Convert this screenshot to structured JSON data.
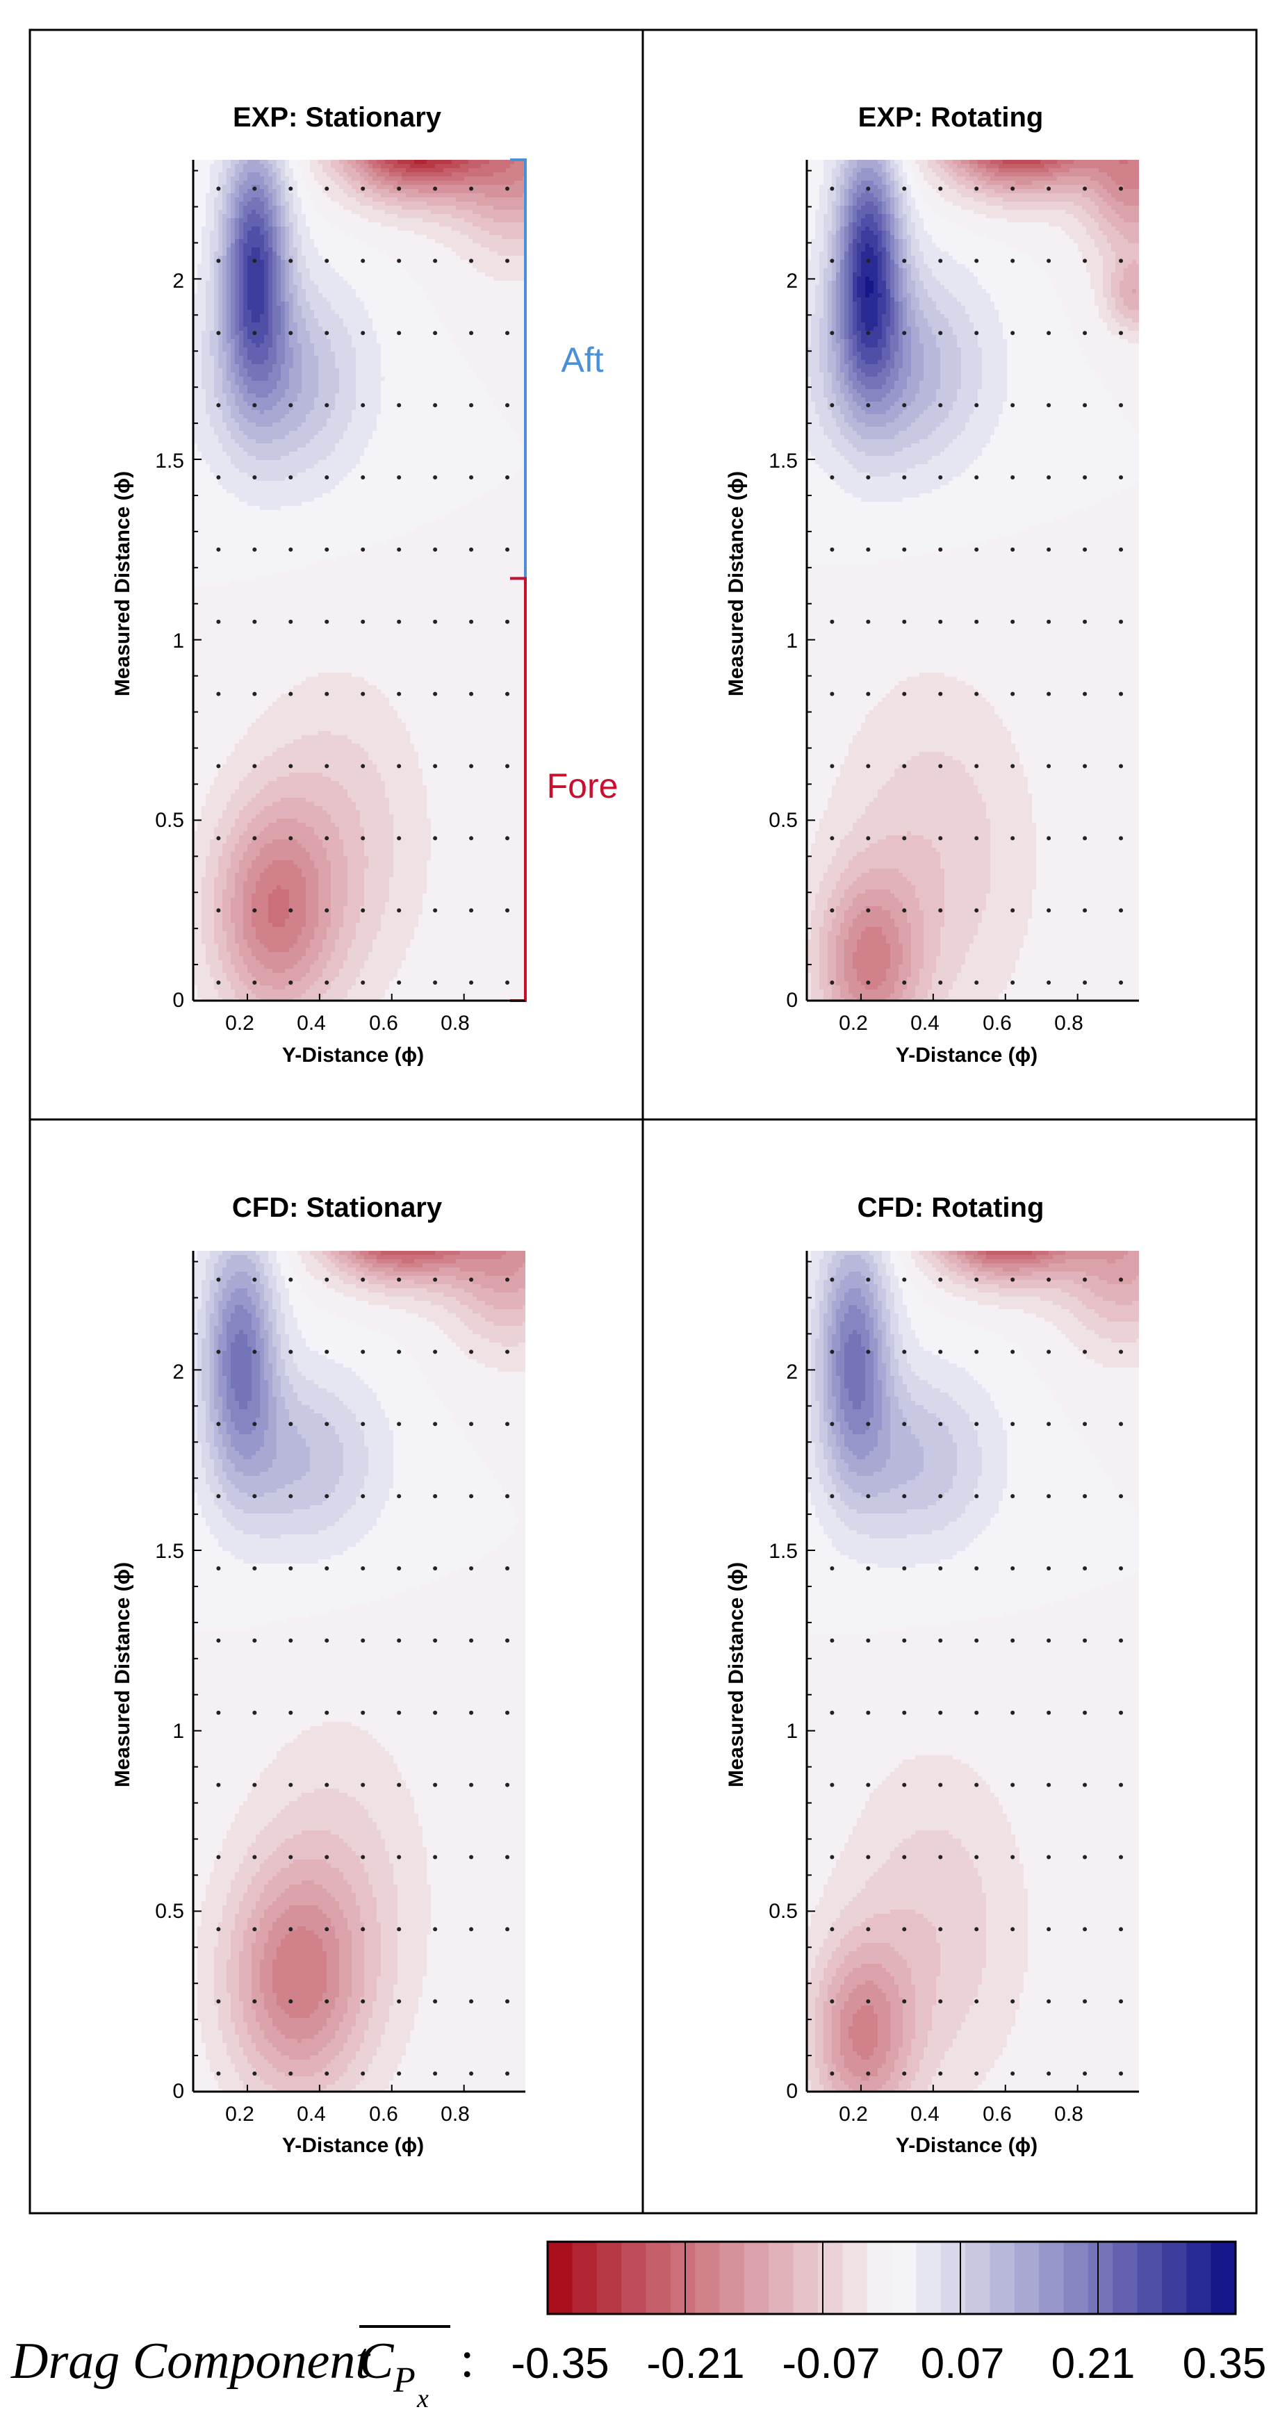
{
  "chart_data": [
    {
      "type": "contour",
      "title": "EXP: Stationary",
      "xlabel": "Y-Distance (ϕ)",
      "ylabel": "Measured Distance (ϕ)",
      "xlim": [
        0.05,
        0.97
      ],
      "ylim": [
        0,
        2.33
      ],
      "xticks": [
        "0.2",
        "0.4",
        "0.6",
        "0.8"
      ],
      "yticks": [
        "0",
        "0.5",
        "1",
        "1.5",
        "2"
      ],
      "annotations": [
        {
          "text": "Aft",
          "color": "#4a90d9",
          "range": [
            1.17,
            2.33
          ]
        },
        {
          "text": "Fore",
          "color": "#c8102e",
          "range": [
            0,
            1.17
          ]
        }
      ],
      "features": [
        {
          "x": 0.22,
          "y": 2.05,
          "value": 0.26,
          "sx": 0.09,
          "sy": 0.33
        },
        {
          "x": 0.3,
          "y": 1.72,
          "value": 0.12,
          "sx": 0.22,
          "sy": 0.28
        },
        {
          "x": 0.66,
          "y": 2.4,
          "value": -0.36,
          "sx": 0.2,
          "sy": 0.16
        },
        {
          "x": 0.95,
          "y": 2.33,
          "value": -0.16,
          "sx": 0.18,
          "sy": 0.25
        },
        {
          "x": 0.27,
          "y": 0.24,
          "value": -0.17,
          "sx": 0.17,
          "sy": 0.3
        },
        {
          "x": 0.45,
          "y": 0.45,
          "value": -0.07,
          "sx": 0.25,
          "sy": 0.45
        }
      ]
    },
    {
      "type": "contour",
      "title": "EXP: Rotating",
      "xlabel": "Y-Distance (ϕ)",
      "ylabel": "Measured Distance (ϕ)",
      "xlim": [
        0.05,
        0.97
      ],
      "ylim": [
        0,
        2.33
      ],
      "xticks": [
        "0.2",
        "0.4",
        "0.6",
        "0.8"
      ],
      "yticks": [
        "0",
        "0.5",
        "1",
        "1.5",
        "2"
      ],
      "features": [
        {
          "x": 0.22,
          "y": 2.05,
          "value": 0.28,
          "sx": 0.09,
          "sy": 0.33
        },
        {
          "x": 0.3,
          "y": 1.75,
          "value": 0.13,
          "sx": 0.24,
          "sy": 0.28
        },
        {
          "x": 0.64,
          "y": 2.42,
          "value": -0.38,
          "sx": 0.21,
          "sy": 0.16
        },
        {
          "x": 0.96,
          "y": 2.3,
          "value": -0.17,
          "sx": 0.14,
          "sy": 0.25
        },
        {
          "x": 0.96,
          "y": 1.95,
          "value": -0.1,
          "sx": 0.08,
          "sy": 0.1
        },
        {
          "x": 0.22,
          "y": 0.1,
          "value": -0.16,
          "sx": 0.14,
          "sy": 0.25
        },
        {
          "x": 0.4,
          "y": 0.4,
          "value": -0.07,
          "sx": 0.28,
          "sy": 0.5
        }
      ]
    },
    {
      "type": "contour",
      "title": "CFD: Stationary",
      "xlabel": "Y-Distance (ϕ)",
      "ylabel": "Measured Distance (ϕ)",
      "xlim": [
        0.05,
        0.97
      ],
      "ylim": [
        0,
        2.33
      ],
      "xticks": [
        "0.2",
        "0.4",
        "0.6",
        "0.8"
      ],
      "yticks": [
        "0",
        "0.5",
        "1",
        "1.5",
        "2"
      ],
      "features": [
        {
          "x": 0.18,
          "y": 2.05,
          "value": 0.2,
          "sx": 0.1,
          "sy": 0.33
        },
        {
          "x": 0.35,
          "y": 1.75,
          "value": 0.1,
          "sx": 0.22,
          "sy": 0.25
        },
        {
          "x": 0.62,
          "y": 2.42,
          "value": -0.36,
          "sx": 0.2,
          "sy": 0.15
        },
        {
          "x": 0.93,
          "y": 2.33,
          "value": -0.15,
          "sx": 0.18,
          "sy": 0.25
        },
        {
          "x": 0.33,
          "y": 0.3,
          "value": -0.16,
          "sx": 0.19,
          "sy": 0.32
        },
        {
          "x": 0.45,
          "y": 0.55,
          "value": -0.06,
          "sx": 0.26,
          "sy": 0.5
        }
      ]
    },
    {
      "type": "contour",
      "title": "CFD: Rotating",
      "xlabel": "Y-Distance (ϕ)",
      "ylabel": "Measured Distance (ϕ)",
      "xlim": [
        0.05,
        0.97
      ],
      "ylim": [
        0,
        2.33
      ],
      "xticks": [
        "0.2",
        "0.4",
        "0.6",
        "0.8"
      ],
      "yticks": [
        "0",
        "0.5",
        "1",
        "1.5",
        "2"
      ],
      "features": [
        {
          "x": 0.18,
          "y": 2.05,
          "value": 0.2,
          "sx": 0.1,
          "sy": 0.33
        },
        {
          "x": 0.35,
          "y": 1.75,
          "value": 0.1,
          "sx": 0.22,
          "sy": 0.25
        },
        {
          "x": 0.6,
          "y": 2.42,
          "value": -0.36,
          "sx": 0.19,
          "sy": 0.15
        },
        {
          "x": 0.93,
          "y": 2.33,
          "value": -0.14,
          "sx": 0.18,
          "sy": 0.25
        },
        {
          "x": 0.2,
          "y": 0.15,
          "value": -0.16,
          "sx": 0.14,
          "sy": 0.26
        },
        {
          "x": 0.4,
          "y": 0.45,
          "value": -0.07,
          "sx": 0.26,
          "sy": 0.48
        }
      ]
    }
  ],
  "colorbar": {
    "title_main": "Drag Component",
    "symbol": "C",
    "subscript": "P",
    "subscript2": "x",
    "suffix": ":",
    "ticks": [
      "-0.35",
      "-0.21",
      "-0.07",
      "0.07",
      "0.21",
      "0.35"
    ],
    "range": [
      -0.35,
      0.35
    ],
    "levels": 28,
    "colors": {
      "red": "#a50010",
      "white": "#f8f8fb",
      "blue": "#0d0d86"
    }
  }
}
